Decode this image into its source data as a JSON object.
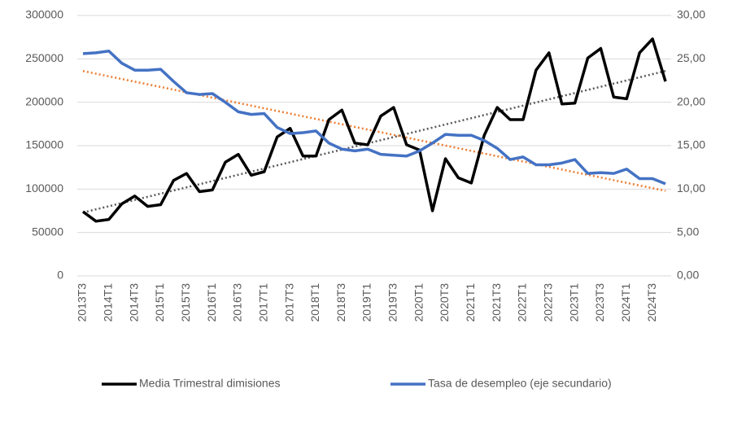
{
  "chart_data": {
    "type": "line",
    "categories": [
      "2013T3",
      null,
      "2014T1",
      null,
      "2014T3",
      null,
      "2015T1",
      null,
      "2015T3",
      null,
      "2016T1",
      null,
      "2016T3",
      null,
      "2017T1",
      null,
      "2017T3",
      null,
      "2018T1",
      null,
      "2018T3",
      null,
      "2019T1",
      null,
      "2019T3",
      null,
      "2020T1",
      null,
      "2020T3",
      null,
      "2021T1",
      null,
      "2021T3",
      null,
      "2022T1",
      null,
      "2022T3",
      null,
      "2023T1",
      null,
      "2023T3",
      null,
      "2024T1",
      null,
      "2024T3",
      null
    ],
    "series": [
      {
        "name": "Media Trimestral dimisiones",
        "color": "#000000",
        "values": [
          74000,
          63000,
          65000,
          83000,
          92000,
          80000,
          82000,
          110000,
          118000,
          97000,
          99000,
          131000,
          140000,
          116000,
          120000,
          160000,
          170000,
          138000,
          138000,
          180000,
          191000,
          153000,
          151000,
          184000,
          194000,
          151000,
          145000,
          75000,
          135000,
          113000,
          107000,
          162000,
          194000,
          180000,
          180000,
          237000,
          257000,
          198000,
          199000,
          251000,
          262000,
          206000,
          204000,
          257000,
          273000,
          224000
        ],
        "trendline": {
          "color": "#595959",
          "values": [
            73000,
            236000
          ]
        }
      },
      {
        "name": "Tasa de desempleo (eje secundario)",
        "color": "#4472c4",
        "axis": "y2",
        "values": [
          25.6,
          25.7,
          25.9,
          24.5,
          23.7,
          23.7,
          23.8,
          22.4,
          21.1,
          20.9,
          21.0,
          20.0,
          18.9,
          18.6,
          18.7,
          17.1,
          16.4,
          16.5,
          16.7,
          15.3,
          14.6,
          14.4,
          14.6,
          14.0,
          13.9,
          13.8,
          14.4,
          15.3,
          16.3,
          16.2,
          16.2,
          15.6,
          14.7,
          13.4,
          13.7,
          12.8,
          12.8,
          13.0,
          13.4,
          11.8,
          11.9,
          11.8,
          12.3,
          11.2,
          11.2,
          10.6
        ],
        "trendline": {
          "color": "#ed7d31",
          "values": [
            23.6,
            9.8
          ]
        }
      }
    ],
    "ylim": [
      0,
      300000
    ],
    "yticks": [
      0,
      50000,
      100000,
      150000,
      200000,
      250000,
      300000
    ],
    "y2lim": [
      0,
      30
    ],
    "y2ticks": [
      {
        "value": 0,
        "label": "0,00"
      },
      {
        "value": 5,
        "label": "5,00"
      },
      {
        "value": 10,
        "label": "10,00"
      },
      {
        "value": 15,
        "label": "15,00"
      },
      {
        "value": 20,
        "label": "20,00"
      },
      {
        "value": 25,
        "label": "25,00"
      },
      {
        "value": 30,
        "label": "30,00"
      }
    ],
    "grid": true,
    "legend": "bottom"
  }
}
